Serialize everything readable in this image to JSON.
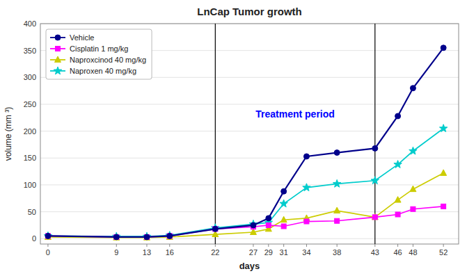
{
  "chart_data": {
    "type": "line",
    "title": "LnCap Tumor growth",
    "x_label": "days",
    "y_label": "volume (mm ³)",
    "x": [
      0,
      9,
      13,
      16,
      22,
      27,
      29,
      31,
      34,
      38,
      43,
      46,
      48,
      52
    ],
    "xlim": [
      -1,
      54
    ],
    "ylim": [
      -10,
      400
    ],
    "xticks": [
      0,
      9,
      13,
      16,
      22,
      27,
      29,
      31,
      34,
      38,
      43,
      46,
      48,
      52
    ],
    "yticks": [
      0,
      50,
      100,
      150,
      200,
      250,
      300,
      350,
      400
    ],
    "vlines": [
      22,
      43
    ],
    "annotations": [
      {
        "text": "Treatment period",
        "x": 32.5,
        "y": 230,
        "color": "blue"
      }
    ],
    "grid": true,
    "legend": "upper left",
    "series": [
      {
        "name": "Vehicle",
        "color": "#00008B",
        "marker": "circle",
        "values": [
          5,
          3,
          3,
          5,
          18,
          25,
          38,
          88,
          153,
          160,
          168,
          228,
          280,
          355
        ]
      },
      {
        "name": "Cisplatin 1 mg/kg",
        "color": "#FF00FF",
        "marker": "square",
        "values": [
          5,
          3,
          3,
          5,
          18,
          22,
          25,
          23,
          32,
          33,
          40,
          45,
          55,
          60
        ]
      },
      {
        "name": "Naproxcinod 40 mg/kg",
        "color": "#CCCC00",
        "marker": "triangle",
        "values": [
          3,
          2,
          2,
          3,
          8,
          12,
          18,
          35,
          38,
          52,
          40,
          72,
          92,
          122
        ]
      },
      {
        "name": "Naproxen 40 mg/kg",
        "color": "#00CCCC",
        "marker": "star",
        "values": [
          5,
          4,
          4,
          6,
          20,
          27,
          30,
          65,
          95,
          102,
          108,
          138,
          163,
          205
        ]
      }
    ]
  }
}
